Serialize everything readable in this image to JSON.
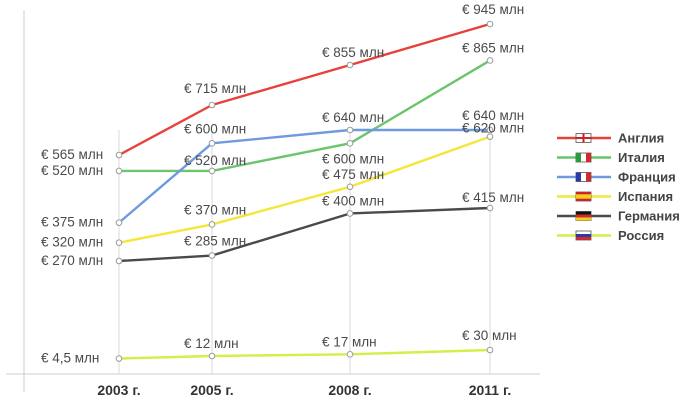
{
  "chart_data": {
    "type": "line",
    "title": "",
    "xlabel": "",
    "ylabel": "",
    "categories": [
      "2003 г.",
      "2005 г.",
      "2008 г.",
      "2011 г."
    ],
    "x": [
      2003,
      2005,
      2008,
      2011
    ],
    "ylim": [
      0,
      950
    ],
    "grid": "vertical lines at categories",
    "legend_position": "right",
    "unit_prefix": "€ ",
    "unit_suffix": " млн",
    "series": [
      {
        "name": "Англия",
        "color": "#e8413c",
        "flag": "england",
        "values": [
          565,
          715,
          855,
          945
        ],
        "labels": [
          "€ 565 млн",
          "€ 715 млн",
          "€ 855 млн",
          "€ 945 млн"
        ]
      },
      {
        "name": "Италия",
        "color": "#6cc46c",
        "flag": "italy",
        "values": [
          520,
          520,
          600,
          865
        ],
        "labels": [
          "€ 520 млн",
          "€ 520 млн",
          "€ 600 млн",
          "€ 865 млн"
        ]
      },
      {
        "name": "Франция",
        "color": "#6e9be0",
        "flag": "france",
        "values": [
          375,
          600,
          640,
          640
        ],
        "labels": [
          "€ 375 млн",
          "€ 600 млн",
          "€ 640 млн",
          "€ 640 млн"
        ]
      },
      {
        "name": "Испания",
        "color": "#f4e63a",
        "flag": "spain",
        "values": [
          320,
          370,
          475,
          620
        ],
        "labels": [
          "€ 320 млн",
          "€ 370 млн",
          "€ 475 млн",
          "€ 620 млн"
        ]
      },
      {
        "name": "Германия",
        "color": "#4a4a4a",
        "flag": "germany",
        "values": [
          270,
          285,
          400,
          415
        ],
        "labels": [
          "€ 270 млн",
          "€ 285 млн",
          "€ 400 млн",
          "€ 415 млн"
        ]
      },
      {
        "name": "Россия",
        "color": "#d4ee4a",
        "flag": "russia",
        "values": [
          4.5,
          12,
          17,
          30
        ],
        "labels": [
          "€ 4,5 млн",
          "€ 12 млн",
          "€ 17 млн",
          "€ 30 млн"
        ]
      }
    ]
  }
}
